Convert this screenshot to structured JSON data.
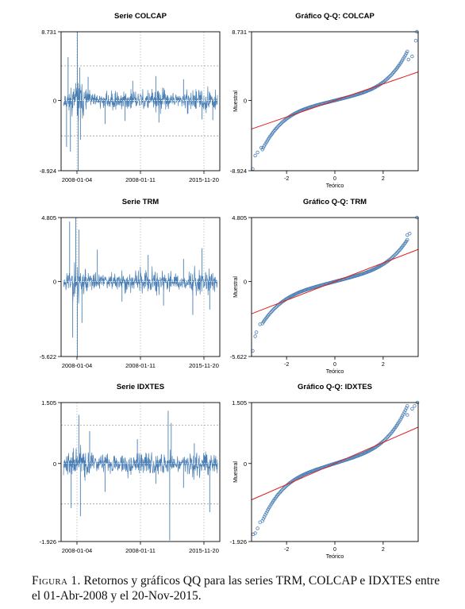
{
  "figure": {
    "caption_label": "Figura 1.",
    "caption_text": "Retornos y gráficos QQ para las series TRM, COLCAP e IDXTES entre el 01-Abr-2008 y el 20-Nov-2015."
  },
  "colors": {
    "series": "#4a7fb5",
    "qq_points": "#4a7fb5",
    "reference_line": "#e02020",
    "grid": "#b8b8b8",
    "axis": "#000000"
  },
  "chart_data": [
    {
      "type": "line",
      "title": "Serie COLCAP",
      "x_ticks": [
        "2008-01-04",
        "2008-01-11",
        "2015-11-20"
      ],
      "y_ticks": [
        "8.731",
        "0",
        "-8.924"
      ],
      "ylim": [
        -8.924,
        8.731
      ],
      "dashed_hlines": [
        4.4,
        -4.5
      ],
      "grid": true,
      "spikes": [
        [
          0.02,
          -5.9
        ],
        [
          0.03,
          5.5
        ],
        [
          0.045,
          -6.5
        ],
        [
          0.09,
          8.73
        ],
        [
          0.095,
          -8.9
        ],
        [
          0.105,
          4.2
        ],
        [
          0.11,
          -5.0
        ],
        [
          0.16,
          3.0
        ],
        [
          0.27,
          -3.0
        ],
        [
          0.4,
          -2.6
        ],
        [
          0.45,
          2.5
        ],
        [
          0.6,
          3.1
        ],
        [
          0.62,
          -2.8
        ],
        [
          0.78,
          2.7
        ],
        [
          0.9,
          -2.4
        ],
        [
          0.97,
          -2.5
        ]
      ],
      "seed": 11
    },
    {
      "type": "scatter",
      "title": "Gráfico Q-Q: COLCAP",
      "xlabel": "Teórico",
      "ylabel": "Muestral",
      "x_ticks": [
        "-2",
        "0",
        "2"
      ],
      "y_ticks": [
        "8.731",
        "0",
        "-8.924"
      ],
      "xlim": [
        -3.45,
        3.45
      ],
      "ylim": [
        -8.924,
        8.731
      ],
      "reference_line": {
        "slope": 1.05,
        "intercept": 0
      },
      "quantile_curve": {
        "scale": 0.78,
        "tail": 0.16,
        "power": 4,
        "lower_clamp": -8.6
      },
      "extreme_points": [
        [
          3.4,
          8.731
        ],
        [
          3.35,
          7.6
        ],
        [
          3.2,
          5.6
        ],
        [
          3.05,
          5.2
        ],
        [
          -3.4,
          -8.7
        ],
        [
          -3.3,
          -7.0
        ],
        [
          -3.2,
          -6.6
        ],
        [
          -3.05,
          -6.0
        ]
      ]
    },
    {
      "type": "line",
      "title": "Serie TRM",
      "x_ticks": [
        "2008-01-04",
        "2008-01-11",
        "2015-11-20"
      ],
      "y_ticks": [
        "4.805",
        "0",
        "-5.622"
      ],
      "ylim": [
        -5.622,
        4.805
      ],
      "dashed_hlines": [],
      "grid": true,
      "spikes": [
        [
          0.04,
          4.5
        ],
        [
          0.06,
          -4.2
        ],
        [
          0.08,
          4.8
        ],
        [
          0.09,
          -5.6
        ],
        [
          0.1,
          3.9
        ],
        [
          0.12,
          -3.1
        ],
        [
          0.22,
          2.4
        ],
        [
          0.38,
          -1.5
        ],
        [
          0.55,
          2.0
        ],
        [
          0.65,
          -1.8
        ],
        [
          0.78,
          1.7
        ],
        [
          0.84,
          -2.5
        ],
        [
          0.9,
          2.5
        ],
        [
          0.95,
          -2.1
        ]
      ],
      "seed": 23
    },
    {
      "type": "scatter",
      "title": "Gráfico Q-Q: TRM",
      "xlabel": "Teórico",
      "ylabel": "Muestral",
      "x_ticks": [
        "-2",
        "0",
        "2"
      ],
      "y_ticks": [
        "4.805",
        "0",
        "-5.622"
      ],
      "xlim": [
        -3.45,
        3.45
      ],
      "ylim": [
        -5.622,
        4.805
      ],
      "reference_line": {
        "slope": 0.7,
        "intercept": 0
      },
      "quantile_curve": {
        "scale": 0.48,
        "tail": 0.07,
        "power": 4,
        "lower_clamp": -4.6
      },
      "extreme_points": [
        [
          3.4,
          4.805
        ],
        [
          3.1,
          3.6
        ],
        [
          3.0,
          3.5
        ],
        [
          -3.4,
          -5.2
        ],
        [
          -3.3,
          -4.1
        ],
        [
          -3.25,
          -3.8
        ],
        [
          -3.1,
          -3.2
        ]
      ]
    },
    {
      "type": "line",
      "title": "Serie IDXTES",
      "x_ticks": [
        "2008-01-04",
        "2008-01-11",
        "2015-11-20"
      ],
      "y_ticks": [
        "1.505",
        "0",
        "-1.926"
      ],
      "ylim": [
        -1.926,
        1.505
      ],
      "dashed_hlines": [
        0.95,
        -1.0
      ],
      "grid": true,
      "spikes": [
        [
          0.05,
          -1.1
        ],
        [
          0.1,
          1.2
        ],
        [
          0.11,
          -1.3
        ],
        [
          0.17,
          0.8
        ],
        [
          0.27,
          -0.7
        ],
        [
          0.48,
          0.6
        ],
        [
          0.6,
          -0.5
        ],
        [
          0.68,
          1.3
        ],
        [
          0.69,
          -1.9
        ],
        [
          0.7,
          1.0
        ],
        [
          0.78,
          -0.6
        ],
        [
          0.85,
          0.5
        ],
        [
          0.95,
          -1.2
        ]
      ],
      "seed": 37
    },
    {
      "type": "scatter",
      "title": "Gráfico Q-Q: IDXTES",
      "xlabel": "Teórico",
      "ylabel": "Muestral",
      "x_ticks": [
        "-2",
        "0",
        "2"
      ],
      "y_ticks": [
        "1.505",
        "0",
        "-1.926"
      ],
      "xlim": [
        -3.45,
        3.45
      ],
      "ylim": [
        -1.926,
        1.505
      ],
      "reference_line": {
        "slope": 0.26,
        "intercept": 0
      },
      "quantile_curve": {
        "scale": 0.19,
        "tail": 0.035,
        "power": 4,
        "lower_clamp": -1.55
      },
      "extreme_points": [
        [
          3.42,
          1.505
        ],
        [
          3.3,
          1.42
        ],
        [
          3.2,
          1.35
        ],
        [
          3.0,
          1.2
        ],
        [
          -3.38,
          -1.75
        ],
        [
          -3.3,
          -1.72
        ],
        [
          -3.2,
          -1.6
        ],
        [
          -3.1,
          -1.45
        ]
      ]
    }
  ]
}
